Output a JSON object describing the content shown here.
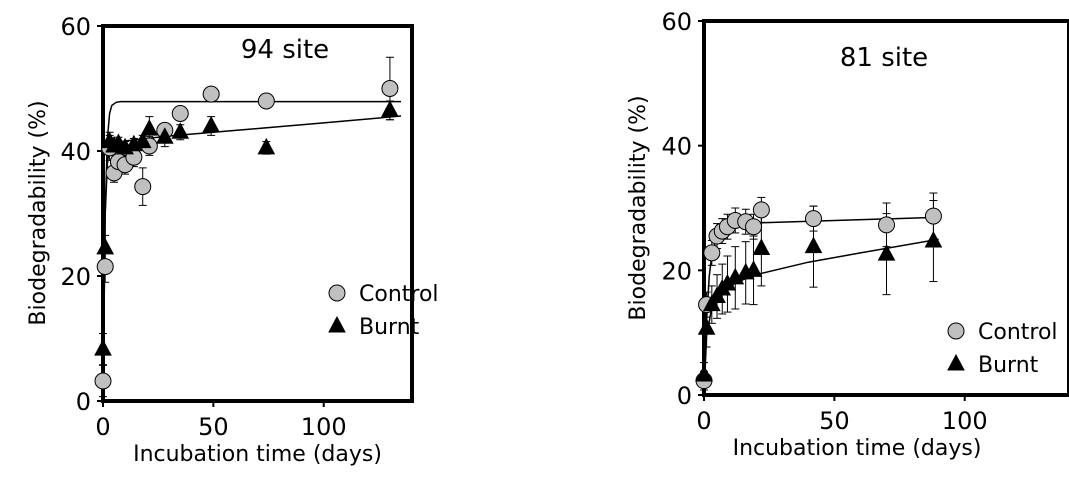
{
  "chart_data": [
    {
      "type": "scatter",
      "title": "94 site",
      "xlabel": "Incubation time (days)",
      "ylabel": "Biodegradability (%)",
      "xlim": [
        0,
        140
      ],
      "ylim": [
        0,
        60
      ],
      "x_ticks": [
        0,
        50,
        100
      ],
      "y_ticks": [
        0,
        20,
        40,
        60
      ],
      "grid": false,
      "legend_position": "lower-right",
      "series": [
        {
          "name": "Control",
          "marker": "circle",
          "color": "#c0c0c0",
          "points": [
            {
              "x": 0,
              "y": 3.2,
              "err": 2.5
            },
            {
              "x": 1,
              "y": 21.5,
              "err": 2.5
            },
            {
              "x": 3,
              "y": 40.5,
              "err": 2
            },
            {
              "x": 5,
              "y": 36.5,
              "err": 1.5
            },
            {
              "x": 7,
              "y": 38.3,
              "err": 1.5
            },
            {
              "x": 10,
              "y": 37.8,
              "err": 1.5
            },
            {
              "x": 14,
              "y": 39,
              "err": 1.5
            },
            {
              "x": 18,
              "y": 34.3,
              "err": 3
            },
            {
              "x": 21,
              "y": 40.8,
              "err": 1.5
            },
            {
              "x": 28,
              "y": 43.3,
              "err": 1
            },
            {
              "x": 35,
              "y": 46,
              "err": 0.8
            },
            {
              "x": 49,
              "y": 49.1,
              "err": 0.8
            },
            {
              "x": 74,
              "y": 48,
              "err": 0.8
            },
            {
              "x": 130,
              "y": 50,
              "err": 5
            }
          ],
          "fit": [
            [
              0,
              0
            ],
            [
              1,
              30
            ],
            [
              2,
              42
            ],
            [
              3,
              46
            ],
            [
              4,
              47.3
            ],
            [
              6,
              47.8
            ],
            [
              8,
              47.9
            ],
            [
              135,
              47.9
            ]
          ]
        },
        {
          "name": "Burnt",
          "marker": "triangle",
          "color": "#000000",
          "points": [
            {
              "x": 0,
              "y": 8.3,
              "err": 2.5
            },
            {
              "x": 1,
              "y": 24.5,
              "err": 2
            },
            {
              "x": 3,
              "y": 41.5,
              "err": 1.5
            },
            {
              "x": 5,
              "y": 40.8,
              "err": 1
            },
            {
              "x": 7,
              "y": 41.2,
              "err": 1
            },
            {
              "x": 10,
              "y": 40.5,
              "err": 1
            },
            {
              "x": 14,
              "y": 41,
              "err": 1
            },
            {
              "x": 18,
              "y": 41.5,
              "err": 1
            },
            {
              "x": 21,
              "y": 43.5,
              "err": 2
            },
            {
              "x": 28,
              "y": 42.2,
              "err": 1.5
            },
            {
              "x": 35,
              "y": 43,
              "err": 1.2
            },
            {
              "x": 49,
              "y": 44,
              "err": 1.5
            },
            {
              "x": 74,
              "y": 40.5,
              "err": 1
            },
            {
              "x": 130,
              "y": 46.5,
              "err": 1.5
            }
          ],
          "fit": [
            [
              0,
              0
            ],
            [
              1,
              30
            ],
            [
              2,
              38
            ],
            [
              3,
              40.5
            ],
            [
              5,
              41.3
            ],
            [
              10,
              41.6
            ],
            [
              30,
              42.4
            ],
            [
              60,
              43.3
            ],
            [
              100,
              44.5
            ],
            [
              135,
              45.6
            ]
          ]
        }
      ]
    },
    {
      "type": "scatter",
      "title": "81 site",
      "xlabel": "Incubation time (days)",
      "ylabel": "Biodegradability (%)",
      "xlim": [
        0,
        140
      ],
      "ylim": [
        0,
        60
      ],
      "x_ticks": [
        0,
        50,
        100
      ],
      "y_ticks": [
        0,
        20,
        40,
        60
      ],
      "grid": false,
      "legend_position": "lower-right",
      "series": [
        {
          "name": "Control",
          "marker": "circle",
          "color": "#c0c0c0",
          "points": [
            {
              "x": 0,
              "y": 2.3,
              "err": 1.5
            },
            {
              "x": 1,
              "y": 14.5,
              "err": 2
            },
            {
              "x": 3,
              "y": 22.8,
              "err": 2
            },
            {
              "x": 5,
              "y": 25.5,
              "err": 2
            },
            {
              "x": 7,
              "y": 26.3,
              "err": 2
            },
            {
              "x": 9,
              "y": 27,
              "err": 2
            },
            {
              "x": 12,
              "y": 28,
              "err": 2
            },
            {
              "x": 16,
              "y": 27.8,
              "err": 2
            },
            {
              "x": 19,
              "y": 27,
              "err": 2
            },
            {
              "x": 22,
              "y": 29.7,
              "err": 2
            },
            {
              "x": 42,
              "y": 28.3,
              "err": 2
            },
            {
              "x": 70,
              "y": 27.3,
              "err": 3.5
            },
            {
              "x": 88,
              "y": 28.7,
              "err": 3.7
            }
          ],
          "fit": [
            [
              0,
              0
            ],
            [
              1,
              12
            ],
            [
              2,
              19
            ],
            [
              3,
              22.5
            ],
            [
              5,
              25.5
            ],
            [
              8,
              26.8
            ],
            [
              12,
              27.3
            ],
            [
              20,
              27.6
            ],
            [
              50,
              28
            ],
            [
              90,
              28.5
            ]
          ]
        },
        {
          "name": "Burnt",
          "marker": "triangle",
          "color": "#000000",
          "points": [
            {
              "x": 0,
              "y": 3.2,
              "err": 2
            },
            {
              "x": 1,
              "y": 10.7,
              "err": 3
            },
            {
              "x": 3,
              "y": 14.5,
              "err": 3
            },
            {
              "x": 5,
              "y": 15.8,
              "err": 3.5
            },
            {
              "x": 7,
              "y": 17,
              "err": 4
            },
            {
              "x": 9,
              "y": 17.8,
              "err": 4.5
            },
            {
              "x": 12,
              "y": 18.8,
              "err": 5
            },
            {
              "x": 16,
              "y": 19.6,
              "err": 5
            },
            {
              "x": 19,
              "y": 20,
              "err": 5.5
            },
            {
              "x": 22,
              "y": 23.5,
              "err": 6
            },
            {
              "x": 42,
              "y": 23.8,
              "err": 6.5
            },
            {
              "x": 70,
              "y": 22.6,
              "err": 6.5
            },
            {
              "x": 88,
              "y": 24.7,
              "err": 6.5
            }
          ],
          "fit": [
            [
              0,
              0
            ],
            [
              1,
              9.5
            ],
            [
              3,
              14
            ],
            [
              6,
              16
            ],
            [
              10,
              17.5
            ],
            [
              15,
              18.5
            ],
            [
              20,
              19.3
            ],
            [
              40,
              21.3
            ],
            [
              60,
              22.8
            ],
            [
              90,
              25
            ]
          ]
        }
      ]
    }
  ]
}
